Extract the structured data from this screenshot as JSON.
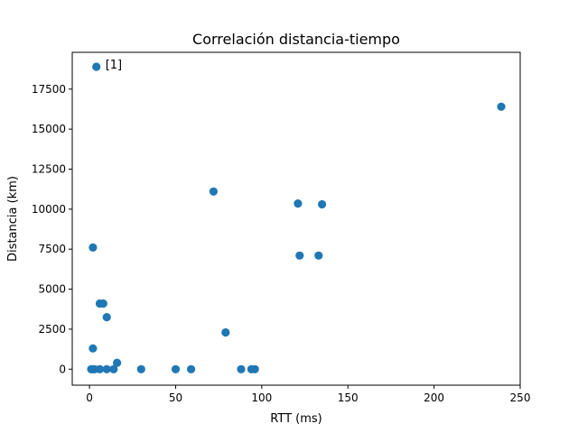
{
  "chart_data": {
    "type": "scatter",
    "title": "Correlación distancia-tiempo",
    "xlabel": "RTT (ms)",
    "ylabel": "Distancia (km)",
    "xlim": [
      -10,
      250
    ],
    "ylim": [
      -1000,
      19800
    ],
    "x_ticks": [
      0,
      50,
      100,
      150,
      200,
      250
    ],
    "y_ticks": [
      0,
      2500,
      5000,
      7500,
      10000,
      12500,
      15000,
      17500
    ],
    "grid": false,
    "marker_color": "#1f77b4",
    "annotations": [
      {
        "text": "[1]",
        "x": 4,
        "y": 18900
      }
    ],
    "points": [
      {
        "x": 4,
        "y": 18900
      },
      {
        "x": 239,
        "y": 16400
      },
      {
        "x": 72,
        "y": 11100
      },
      {
        "x": 121,
        "y": 10350
      },
      {
        "x": 135,
        "y": 10300
      },
      {
        "x": 2,
        "y": 7600
      },
      {
        "x": 122,
        "y": 7100
      },
      {
        "x": 133,
        "y": 7100
      },
      {
        "x": 6,
        "y": 4100
      },
      {
        "x": 8,
        "y": 4100
      },
      {
        "x": 10,
        "y": 3250
      },
      {
        "x": 79,
        "y": 2300
      },
      {
        "x": 2,
        "y": 1300
      },
      {
        "x": 16,
        "y": 400
      },
      {
        "x": 1,
        "y": 0
      },
      {
        "x": 2,
        "y": 0
      },
      {
        "x": 3,
        "y": 0
      },
      {
        "x": 6,
        "y": 0
      },
      {
        "x": 10,
        "y": 0
      },
      {
        "x": 14,
        "y": 0
      },
      {
        "x": 30,
        "y": 0
      },
      {
        "x": 50,
        "y": 0
      },
      {
        "x": 59,
        "y": 0
      },
      {
        "x": 88,
        "y": 0
      },
      {
        "x": 94,
        "y": 0
      },
      {
        "x": 96,
        "y": 0
      }
    ]
  }
}
